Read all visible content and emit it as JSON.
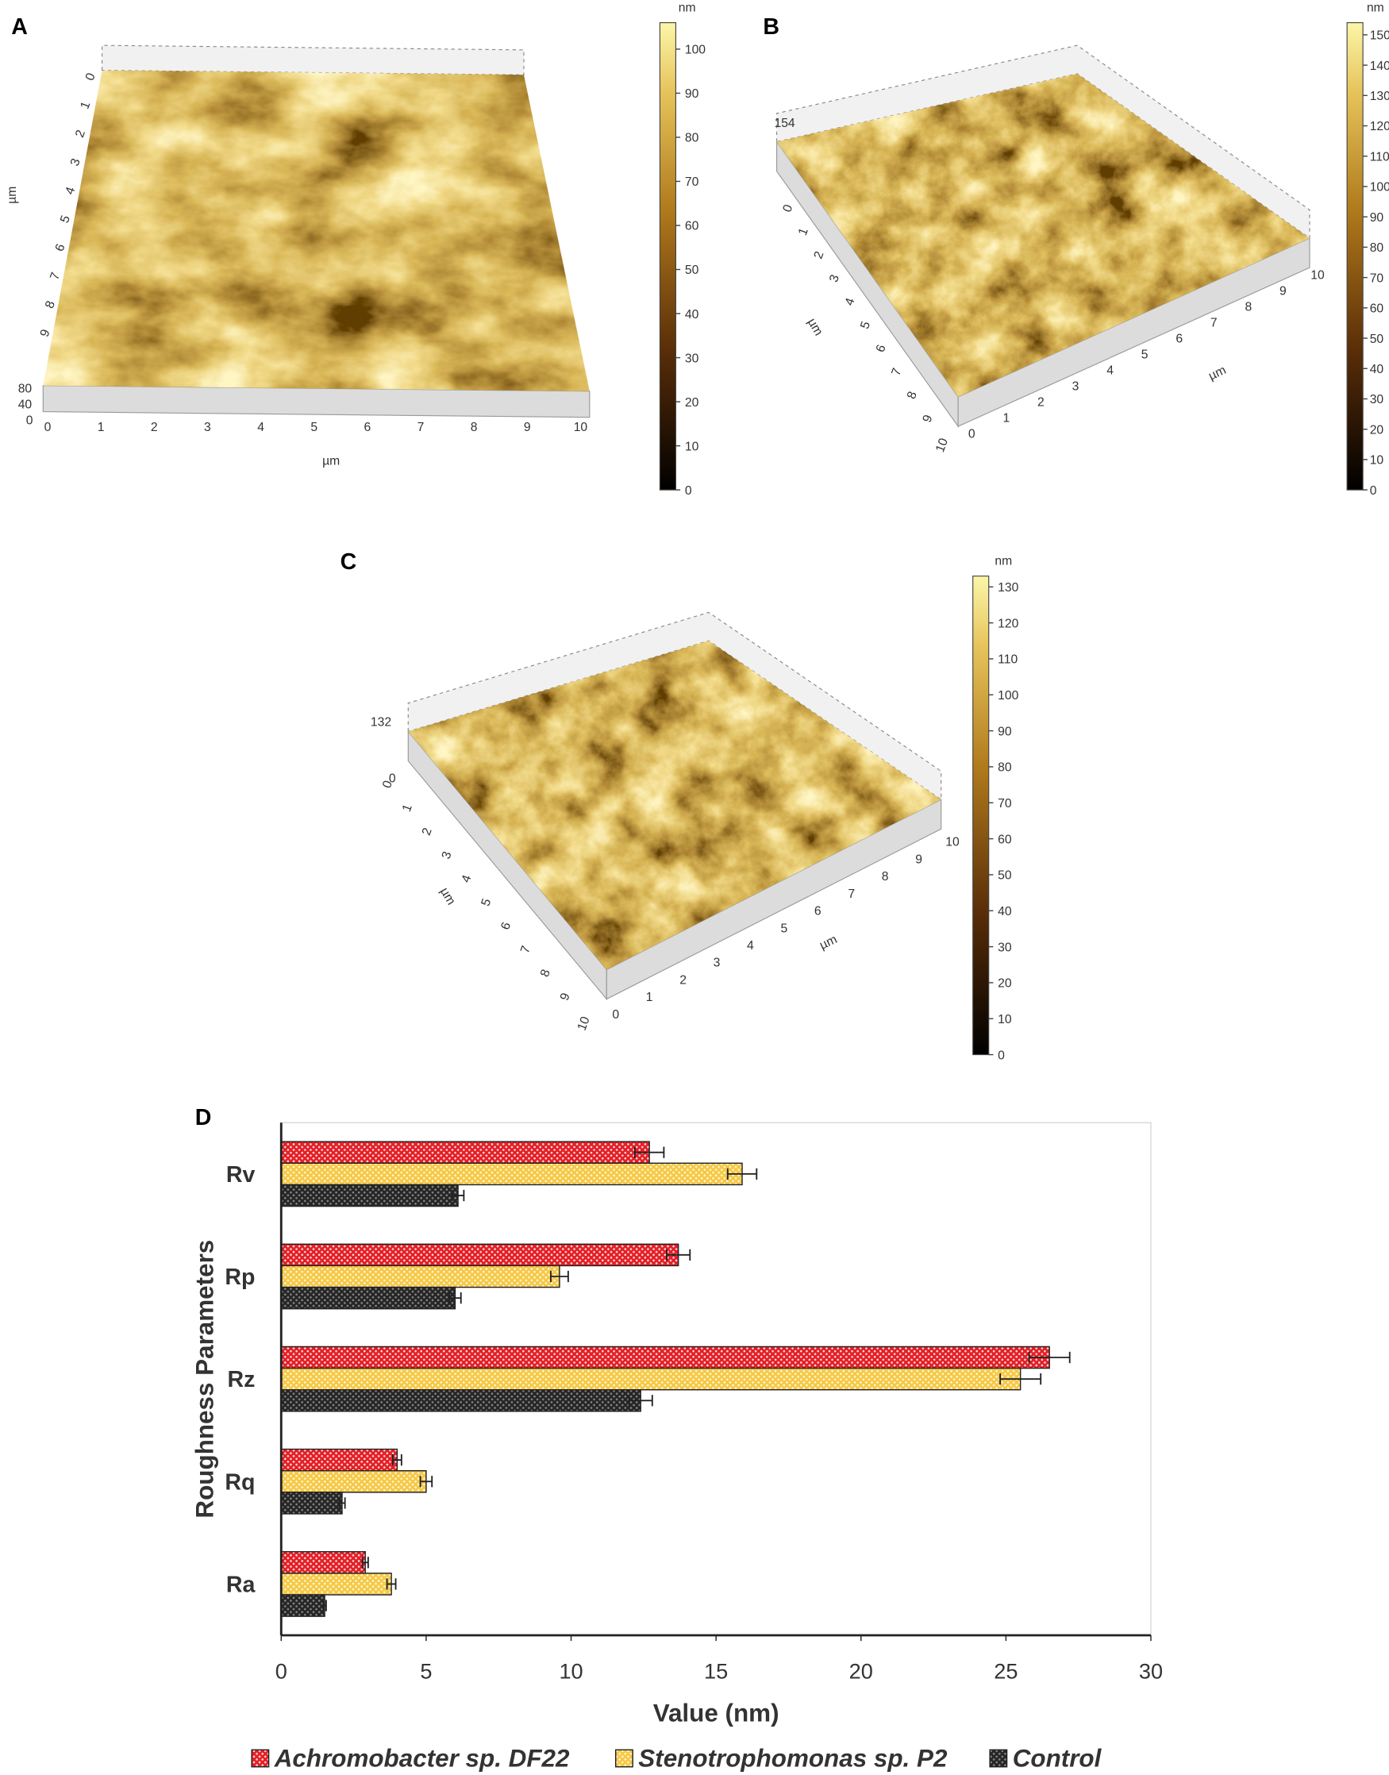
{
  "afm_images": [
    {
      "label": "A",
      "axis_unit": "µm",
      "x_ticks": [
        0,
        1,
        2,
        3,
        4,
        5,
        6,
        7,
        8,
        9,
        10
      ],
      "y_ticks": [
        0,
        1,
        2,
        3,
        4,
        5,
        6,
        7,
        8,
        9
      ],
      "z_labels": [
        80,
        40,
        0
      ],
      "colorbar": {
        "unit": "nm",
        "lim": [
          0,
          106
        ],
        "ticks": [
          0,
          10,
          20,
          30,
          40,
          50,
          60,
          70,
          80,
          90,
          100
        ]
      }
    },
    {
      "label": "B",
      "axis_unit": "µm",
      "x_ticks": [
        0,
        1,
        2,
        3,
        4,
        5,
        6,
        7,
        8,
        9,
        10
      ],
      "y_ticks": [
        0,
        1,
        2,
        3,
        4,
        5,
        6,
        7,
        8,
        9,
        10
      ],
      "z_labels": [
        154
      ],
      "colorbar": {
        "unit": "nm",
        "lim": [
          0,
          154
        ],
        "ticks": [
          0,
          10,
          20,
          30,
          40,
          50,
          60,
          70,
          80,
          90,
          100,
          110,
          120,
          130,
          140,
          150
        ]
      }
    },
    {
      "label": "C",
      "axis_unit": "µm",
      "x_ticks": [
        0,
        1,
        2,
        3,
        4,
        5,
        6,
        7,
        8,
        9,
        10
      ],
      "y_ticks": [
        0,
        1,
        2,
        3,
        4,
        5,
        6,
        7,
        8,
        9,
        10
      ],
      "z_labels": [
        132,
        0
      ],
      "colorbar": {
        "unit": "nm",
        "lim": [
          0,
          133
        ],
        "ticks": [
          0,
          10,
          20,
          30,
          40,
          50,
          60,
          70,
          80,
          90,
          100,
          110,
          120,
          130
        ]
      }
    }
  ],
  "chart_data": {
    "type": "hbar",
    "panel_label": "D",
    "x_label": "Value (nm)",
    "y_label": "Roughness Parameters",
    "categories": [
      "Rv",
      "Rp",
      "Rz",
      "Rq",
      "Ra"
    ],
    "series": [
      {
        "name": "Achromobacter sp. DF22",
        "color": "#e41f26",
        "values": [
          12.7,
          13.7,
          26.5,
          4.0,
          2.9
        ],
        "errors": [
          0.5,
          0.4,
          0.7,
          0.15,
          0.1
        ]
      },
      {
        "name": "Stenotrophomonas sp. P2",
        "color": "#f6c945",
        "values": [
          15.9,
          9.6,
          25.5,
          5.0,
          3.8
        ],
        "errors": [
          0.5,
          0.3,
          0.7,
          0.2,
          0.15
        ]
      },
      {
        "name": "Control",
        "color": "#262626",
        "values": [
          6.1,
          6.0,
          12.4,
          2.1,
          1.5
        ],
        "errors": [
          0.2,
          0.2,
          0.4,
          0.1,
          0.05
        ]
      }
    ],
    "xlim": [
      0,
      30
    ],
    "xticks": [
      0,
      5,
      10,
      15,
      20,
      25,
      30
    ],
    "grid": false,
    "legend": "bottom"
  }
}
